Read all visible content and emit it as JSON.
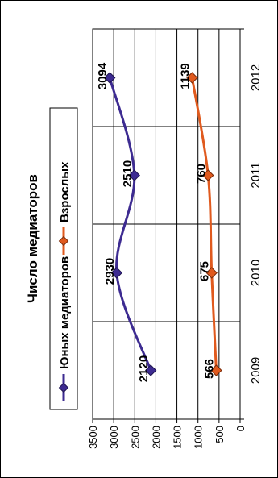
{
  "chart_data": {
    "type": "line",
    "title": "Число медиаторов",
    "orientation": "rotated-90-ccw",
    "categories": [
      "2009",
      "2010",
      "2011",
      "2012"
    ],
    "ylim": [
      0,
      3500
    ],
    "y_ticks": [
      "0",
      "500",
      "1000",
      "1500",
      "2000",
      "2500",
      "3000",
      "3500"
    ],
    "grid": "on",
    "legend_position": "top",
    "series": [
      {
        "name": "Юных медиаторов",
        "values": [
          2120,
          2930,
          2510,
          3094
        ],
        "labels": [
          "2120",
          "2930",
          "2510",
          "3094"
        ],
        "color": "#3d2b91",
        "marker": "diamond"
      },
      {
        "name": "Взрослых",
        "values": [
          566,
          675,
          760,
          1139
        ],
        "labels": [
          "566",
          "675",
          "760",
          "1139"
        ],
        "color": "#e05a1e",
        "marker": "diamond"
      }
    ]
  }
}
